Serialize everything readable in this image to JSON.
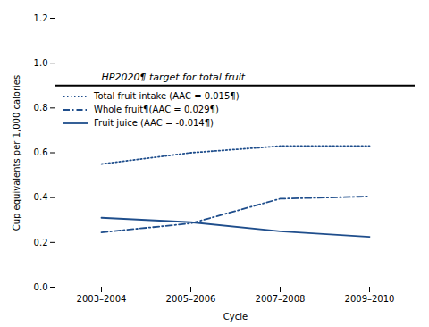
{
  "chart_data": {
    "type": "line",
    "xlabel": "Cycle",
    "ylabel": "Cup equivalents per 1,000 calories",
    "categories": [
      "2003–2004",
      "2005–2006",
      "2007–2008",
      "2009–2010"
    ],
    "series": [
      {
        "name": "Total fruit intake (AAC = 0.015¶)",
        "color": "#1F4E8C",
        "line_style": "dotted",
        "values": [
          0.55,
          0.6,
          0.63,
          0.63
        ]
      },
      {
        "name": "Whole fruit¶(AAC = 0.029¶)",
        "color": "#1F4E8C",
        "line_style": "dashdot",
        "values": [
          0.245,
          0.285,
          0.395,
          0.405
        ]
      },
      {
        "name": "Fruit juice (AAC = -0.014¶)",
        "color": "#1F4E8C",
        "line_style": "solid",
        "values": [
          0.31,
          0.29,
          0.25,
          0.225
        ]
      }
    ],
    "annotations": [
      {
        "text": "HP2020¶ target for total fruit",
        "y": 0.9,
        "color": "#000000"
      }
    ],
    "ylim": [
      0.0,
      1.2
    ],
    "yticks": [
      {
        "value": 0.0,
        "label": "0.0"
      },
      {
        "value": 0.2,
        "label": "0.2"
      },
      {
        "value": 0.4,
        "label": "0.4"
      },
      {
        "value": 0.6,
        "label": "0.6"
      },
      {
        "value": 0.8,
        "label": "0.8"
      },
      {
        "value": 1.0,
        "label": "1.0"
      },
      {
        "value": 1.2,
        "label": "1.2"
      }
    ],
    "grid": false,
    "legend": "upper left"
  }
}
